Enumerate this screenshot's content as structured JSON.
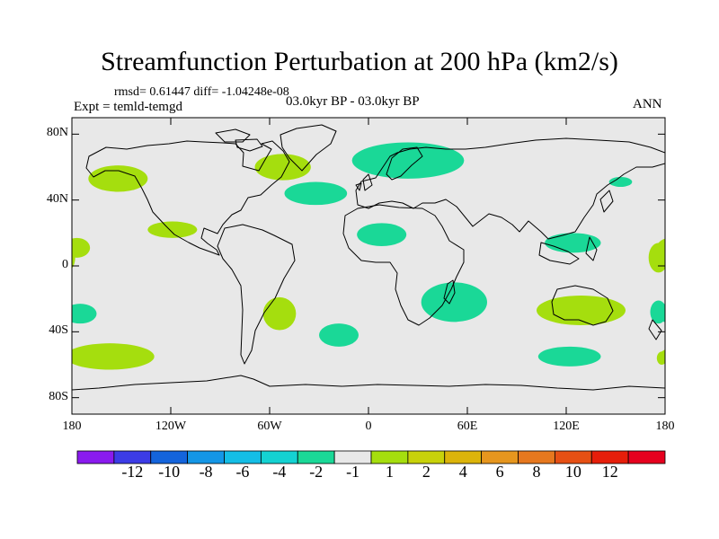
{
  "title": "Streamfunction Perturbation at 200 hPa (km2/s)",
  "stats": "rmsd= 0.61447 diff= -1.04248e-08",
  "experiment": "Expt = temld-temgd",
  "period": "03.0kyr BP - 03.0kyr BP",
  "season": "ANN",
  "map": {
    "lon_range": [
      -180,
      180
    ],
    "lat_range": [
      -90,
      90
    ],
    "lat_ticks": [
      {
        "lat": 80,
        "label": "80N"
      },
      {
        "lat": 40,
        "label": "40N"
      },
      {
        "lat": 0,
        "label": "0"
      },
      {
        "lat": -40,
        "label": "40S"
      },
      {
        "lat": -80,
        "label": "80S"
      }
    ],
    "lon_ticks": [
      {
        "lon": -180,
        "label": "180"
      },
      {
        "lon": -120,
        "label": "120W"
      },
      {
        "lon": -60,
        "label": "60W"
      },
      {
        "lon": 0,
        "label": "0"
      },
      {
        "lon": 60,
        "label": "60E"
      },
      {
        "lon": 120,
        "label": "120E"
      },
      {
        "lon": 180,
        "label": "180"
      }
    ],
    "background_color": "#e8e8e8",
    "anomalies": [
      {
        "lon": -152,
        "lat": 53,
        "rlon": 18,
        "rlat": 8,
        "level": "1 to 2",
        "color": "#a5de0e"
      },
      {
        "lon": -119,
        "lat": 22,
        "rlon": 15,
        "rlat": 5,
        "level": "1 to 2",
        "color": "#a5de0e"
      },
      {
        "lon": -177,
        "lat": 11,
        "rlon": 8,
        "rlat": 6,
        "level": "1 to 2",
        "color": "#a5de0e"
      },
      {
        "lon": -52,
        "lat": 60,
        "rlon": 17,
        "rlat": 8,
        "level": "1 to 2",
        "color": "#a5de0e"
      },
      {
        "lon": -32,
        "lat": 44,
        "rlon": 19,
        "rlat": 7,
        "level": "-2 to -1",
        "color": "#1ad897"
      },
      {
        "lon": 24,
        "lat": 64,
        "rlon": 34,
        "rlat": 11,
        "level": "-2 to -1",
        "color": "#1ad897"
      },
      {
        "lon": 8,
        "lat": 19,
        "rlon": 15,
        "rlat": 7,
        "level": "-2 to -1",
        "color": "#1ad897"
      },
      {
        "lon": 52,
        "lat": -22,
        "rlon": 20,
        "rlat": 12,
        "level": "-2 to -1",
        "color": "#1ad897"
      },
      {
        "lon": -54,
        "lat": -29,
        "rlon": 10,
        "rlat": 10,
        "level": "1 to 2",
        "color": "#a5de0e"
      },
      {
        "lon": -175,
        "lat": -29,
        "rlon": 10,
        "rlat": 6,
        "level": "-2 to -1",
        "color": "#1ad897"
      },
      {
        "lon": -18,
        "lat": -42,
        "rlon": 12,
        "rlat": 7,
        "level": "-2 to -1",
        "color": "#1ad897"
      },
      {
        "lon": -157,
        "lat": -55,
        "rlon": 27,
        "rlat": 8,
        "level": "1 to 2",
        "color": "#a5de0e"
      },
      {
        "lon": 129,
        "lat": -27,
        "rlon": 27,
        "rlat": 9,
        "level": "1 to 2",
        "color": "#a5de0e"
      },
      {
        "lon": 122,
        "lat": -55,
        "rlon": 19,
        "rlat": 6,
        "level": "-2 to -1",
        "color": "#1ad897"
      },
      {
        "lon": 124,
        "lat": 14,
        "rlon": 17,
        "rlat": 6,
        "level": "-2 to -1",
        "color": "#1ad897"
      },
      {
        "lon": 153,
        "lat": 51,
        "rlon": 7,
        "rlat": 3,
        "level": "-2 to -1",
        "color": "#1ad897"
      },
      {
        "lon": 176,
        "lat": 5,
        "rlon": 6,
        "rlat": 9,
        "level": "1 to 2",
        "color": "#a5de0e"
      },
      {
        "lon": 176,
        "lat": -28,
        "rlon": 5,
        "rlat": 7,
        "level": "-2 to -1",
        "color": "#1ad897"
      },
      {
        "lon": 178,
        "lat": -56,
        "rlon": 3,
        "rlat": 4,
        "level": "1 to 2",
        "color": "#a5de0e"
      }
    ]
  },
  "colorbar": {
    "colors": [
      "#8a1aee",
      "#3c3ce6",
      "#1464dc",
      "#1496e6",
      "#14bee6",
      "#14d2d2",
      "#1ad897",
      "#e8e8e8",
      "#a5de0e",
      "#c8d20a",
      "#dcb40a",
      "#e6961e",
      "#e6781e",
      "#e65014",
      "#e61e0a",
      "#e6001e"
    ],
    "labels": [
      "-12",
      "-10",
      "-8",
      "-6",
      "-4",
      "-2",
      "-1",
      "1",
      "2",
      "4",
      "6",
      "8",
      "10",
      "12"
    ]
  }
}
